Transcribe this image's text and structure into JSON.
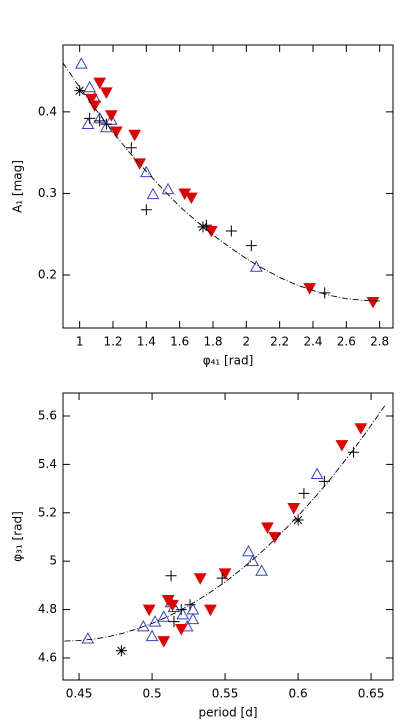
{
  "chart_data": [
    {
      "type": "scatter",
      "xlabel": "φ₄₁ [rad]",
      "ylabel": "A₁ [mag]",
      "xlim": [
        0.9,
        2.88
      ],
      "ylim": [
        0.135,
        0.482
      ],
      "xticks": [
        1,
        1.2,
        1.4,
        1.6,
        1.8,
        2,
        2.2,
        2.4,
        2.6,
        2.8
      ],
      "yticks": [
        0.2,
        0.3,
        0.4
      ],
      "series": [
        {
          "marker": "triangle-up-open",
          "color": "#3344cc",
          "x": [
            1.01,
            1.06,
            1.05,
            1.09,
            1.12,
            1.16,
            1.19,
            1.4,
            1.44,
            1.53,
            2.06
          ],
          "values": [
            0.459,
            0.43,
            0.385,
            0.417,
            0.392,
            0.381,
            0.39,
            0.326,
            0.299,
            0.305,
            0.21
          ]
        },
        {
          "marker": "triangle-down",
          "color": "#e00000",
          "x": [
            1.07,
            1.09,
            1.12,
            1.16,
            1.19,
            1.22,
            1.33,
            1.36,
            1.63,
            1.67,
            1.79,
            2.38,
            2.76
          ],
          "values": [
            0.416,
            0.408,
            0.436,
            0.424,
            0.396,
            0.376,
            0.372,
            0.337,
            0.3,
            0.295,
            0.254,
            0.184,
            0.167
          ]
        },
        {
          "marker": "plus",
          "color": "#000000",
          "x": [
            1.06,
            1.12,
            1.16,
            1.31,
            1.4,
            1.76,
            1.91,
            2.03,
            2.47
          ],
          "values": [
            0.392,
            0.389,
            0.385,
            0.356,
            0.28,
            0.261,
            0.254,
            0.236,
            0.178
          ]
        },
        {
          "marker": "asterisk",
          "color": "#000000",
          "x": [
            1.0,
            1.74
          ],
          "values": [
            0.426,
            0.259
          ]
        },
        {
          "marker": "dash-dot-line",
          "color": "#000000",
          "x": [
            0.9,
            1.0,
            1.1,
            1.2,
            1.3,
            1.4,
            1.5,
            1.6,
            1.7,
            1.8,
            1.9,
            2.0,
            2.1,
            2.2,
            2.3,
            2.4,
            2.5,
            2.6,
            2.7,
            2.8
          ],
          "values": [
            0.46,
            0.43,
            0.402,
            0.375,
            0.35,
            0.327,
            0.305,
            0.284,
            0.266,
            0.249,
            0.234,
            0.22,
            0.208,
            0.197,
            0.188,
            0.181,
            0.175,
            0.171,
            0.169,
            0.168
          ]
        }
      ]
    },
    {
      "type": "scatter",
      "xlabel": "period [d]",
      "ylabel": "φ₃₁ [rad]",
      "xlim": [
        0.439,
        0.665
      ],
      "ylim": [
        4.509,
        5.695
      ],
      "xticks": [
        0.45,
        0.5,
        0.55,
        0.6,
        0.65
      ],
      "yticks": [
        4.6,
        4.8,
        5,
        5.2,
        5.4,
        5.6
      ],
      "series": [
        {
          "marker": "triangle-up-open",
          "color": "#3344cc",
          "x": [
            0.456,
            0.494,
            0.5,
            0.502,
            0.508,
            0.513,
            0.515,
            0.521,
            0.524,
            0.528,
            0.528,
            0.566,
            0.569,
            0.575,
            0.613
          ],
          "values": [
            4.68,
            4.73,
            4.69,
            4.75,
            4.77,
            4.83,
            4.81,
            4.78,
            4.73,
            4.8,
            4.76,
            5.04,
            5.0,
            4.96,
            5.36
          ]
        },
        {
          "marker": "triangle-down",
          "color": "#e00000",
          "x": [
            0.498,
            0.508,
            0.511,
            0.514,
            0.52,
            0.533,
            0.54,
            0.55,
            0.579,
            0.584,
            0.597,
            0.63,
            0.643
          ],
          "values": [
            4.8,
            4.67,
            4.84,
            4.82,
            4.72,
            4.93,
            4.8,
            4.95,
            5.14,
            5.1,
            5.22,
            5.48,
            5.55
          ]
        },
        {
          "marker": "plus",
          "color": "#000000",
          "x": [
            0.513,
            0.515,
            0.52,
            0.526,
            0.548,
            0.604,
            0.618,
            0.638
          ],
          "values": [
            4.94,
            4.75,
            4.8,
            4.82,
            4.93,
            5.28,
            5.33,
            5.45
          ]
        },
        {
          "marker": "asterisk",
          "color": "#000000",
          "x": [
            0.479,
            0.6
          ],
          "values": [
            4.63,
            5.17
          ]
        },
        {
          "marker": "dash-dot-line",
          "color": "#000000",
          "x": [
            0.44,
            0.45,
            0.46,
            0.47,
            0.48,
            0.49,
            0.5,
            0.51,
            0.52,
            0.53,
            0.54,
            0.55,
            0.56,
            0.57,
            0.58,
            0.59,
            0.6,
            0.61,
            0.62,
            0.63,
            0.64,
            0.65,
            0.66
          ],
          "values": [
            4.67,
            4.672,
            4.678,
            4.688,
            4.702,
            4.721,
            4.743,
            4.769,
            4.799,
            4.834,
            4.872,
            4.914,
            4.961,
            5.011,
            5.066,
            5.125,
            5.187,
            5.254,
            5.324,
            5.399,
            5.478,
            5.561,
            5.648
          ]
        }
      ]
    }
  ]
}
